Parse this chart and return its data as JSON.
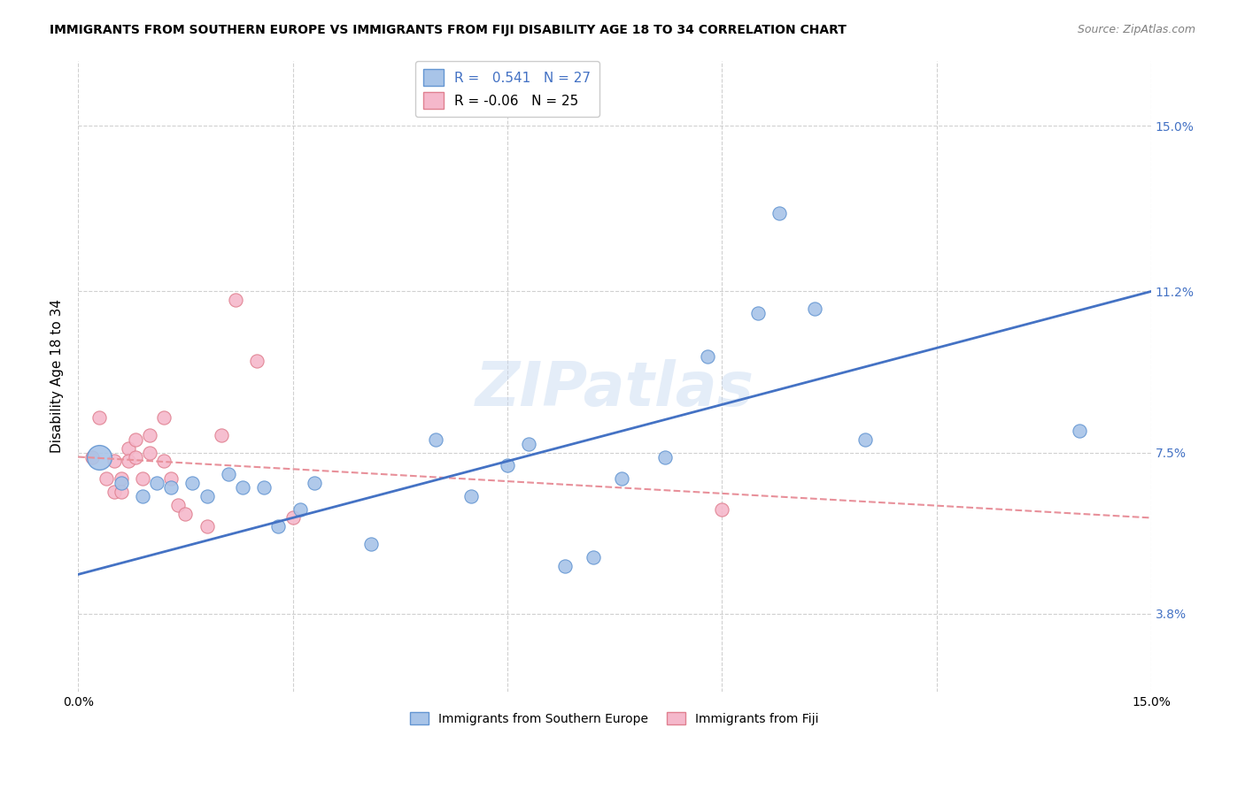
{
  "title": "IMMIGRANTS FROM SOUTHERN EUROPE VS IMMIGRANTS FROM FIJI DISABILITY AGE 18 TO 34 CORRELATION CHART",
  "source": "Source: ZipAtlas.com",
  "ylabel": "Disability Age 18 to 34",
  "xlim": [
    0.0,
    0.15
  ],
  "ylim": [
    0.02,
    0.165
  ],
  "xticks": [
    0.0,
    0.03,
    0.06,
    0.09,
    0.12,
    0.15
  ],
  "xtick_labels": [
    "0.0%",
    "",
    "",
    "",
    "",
    "15.0%"
  ],
  "ytick_labels_right": [
    "3.8%",
    "7.5%",
    "11.2%",
    "15.0%"
  ],
  "ytick_values_right": [
    0.038,
    0.075,
    0.112,
    0.15
  ],
  "r1": 0.541,
  "n1": 27,
  "r2": -0.06,
  "n2": 25,
  "color_blue": "#a8c4e8",
  "color_pink": "#f5b8cb",
  "color_blue_edge": "#6496d2",
  "color_pink_edge": "#e08090",
  "color_line_blue": "#4472c4",
  "color_line_pink": "#e8909a",
  "watermark": "ZIPatlas",
  "blue_points": [
    [
      0.006,
      0.068
    ],
    [
      0.009,
      0.065
    ],
    [
      0.011,
      0.068
    ],
    [
      0.013,
      0.067
    ],
    [
      0.016,
      0.068
    ],
    [
      0.018,
      0.065
    ],
    [
      0.021,
      0.07
    ],
    [
      0.023,
      0.067
    ],
    [
      0.026,
      0.067
    ],
    [
      0.028,
      0.058
    ],
    [
      0.031,
      0.062
    ],
    [
      0.033,
      0.068
    ],
    [
      0.041,
      0.054
    ],
    [
      0.05,
      0.078
    ],
    [
      0.055,
      0.065
    ],
    [
      0.06,
      0.072
    ],
    [
      0.063,
      0.077
    ],
    [
      0.068,
      0.049
    ],
    [
      0.072,
      0.051
    ],
    [
      0.076,
      0.069
    ],
    [
      0.082,
      0.074
    ],
    [
      0.088,
      0.097
    ],
    [
      0.095,
      0.107
    ],
    [
      0.098,
      0.13
    ],
    [
      0.103,
      0.108
    ],
    [
      0.11,
      0.078
    ],
    [
      0.14,
      0.08
    ]
  ],
  "pink_points": [
    [
      0.002,
      0.074
    ],
    [
      0.003,
      0.083
    ],
    [
      0.004,
      0.069
    ],
    [
      0.005,
      0.066
    ],
    [
      0.005,
      0.073
    ],
    [
      0.006,
      0.069
    ],
    [
      0.006,
      0.066
    ],
    [
      0.007,
      0.076
    ],
    [
      0.007,
      0.073
    ],
    [
      0.008,
      0.078
    ],
    [
      0.008,
      0.074
    ],
    [
      0.009,
      0.069
    ],
    [
      0.01,
      0.079
    ],
    [
      0.01,
      0.075
    ],
    [
      0.012,
      0.083
    ],
    [
      0.012,
      0.073
    ],
    [
      0.013,
      0.069
    ],
    [
      0.014,
      0.063
    ],
    [
      0.015,
      0.061
    ],
    [
      0.018,
      0.058
    ],
    [
      0.02,
      0.079
    ],
    [
      0.022,
      0.11
    ],
    [
      0.025,
      0.096
    ],
    [
      0.03,
      0.06
    ],
    [
      0.09,
      0.062
    ]
  ],
  "blue_large_point": [
    0.003,
    0.074
  ],
  "blue_large_size": 400,
  "blue_line_x": [
    0.0,
    0.15
  ],
  "blue_line_y": [
    0.047,
    0.112
  ],
  "pink_line_x": [
    0.0,
    0.15
  ],
  "pink_line_y": [
    0.074,
    0.06
  ],
  "background_color": "#ffffff",
  "grid_color": "#d0d0d0"
}
